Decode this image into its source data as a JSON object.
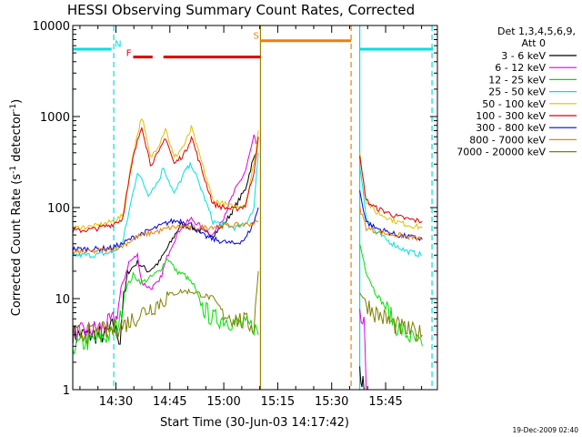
{
  "chart_data": {
    "type": "line",
    "title": "HESSI Observing Summary Count Rates, Corrected",
    "xlabel": "Start Time (30-Jun-03 14:17:42)",
    "ylabel_prefix": "Corrected Count Rate (s",
    "ylabel_sup1": "-1",
    "ylabel_mid": " detector",
    "ylabel_sup2": "-1",
    "ylabel_suffix": ")",
    "yscale": "log",
    "ylim": [
      1,
      10000
    ],
    "xlim_minutes": [
      14.3,
      15.99
    ],
    "x_ticks": [
      {
        "label": "14:30",
        "h": 14.5
      },
      {
        "label": "14:45",
        "h": 14.75
      },
      {
        "label": "15:00",
        "h": 15.0
      },
      {
        "label": "15:15",
        "h": 15.25
      },
      {
        "label": "15:30",
        "h": 15.5
      },
      {
        "label": "15:45",
        "h": 15.75
      }
    ],
    "y_ticks": [
      {
        "label": "1",
        "v": 1
      },
      {
        "label": "10",
        "v": 10
      },
      {
        "label": "100",
        "v": 100
      },
      {
        "label": "1000",
        "v": 1000
      },
      {
        "label": "10000",
        "v": 10000
      }
    ],
    "legend_title_1": "Det 1,3,4,5,6,9,",
    "legend_title_2": "Att 0",
    "legend_placement": "right",
    "series": [
      {
        "name": "3 - 6 keV",
        "color": "#000000",
        "segments": [
          [
            [
              14.3,
              4
            ],
            [
              14.45,
              4
            ],
            [
              14.49,
              5
            ],
            [
              14.52,
              3.5
            ],
            [
              14.53,
              8
            ],
            [
              14.56,
              20
            ],
            [
              14.6,
              25
            ],
            [
              14.65,
              20
            ],
            [
              14.7,
              25
            ],
            [
              14.75,
              40
            ],
            [
              14.8,
              65
            ],
            [
              14.85,
              60
            ],
            [
              14.9,
              55
            ],
            [
              14.95,
              50
            ],
            [
              15.0,
              65
            ],
            [
              15.05,
              100
            ],
            [
              15.1,
              160
            ],
            [
              15.13,
              300
            ],
            [
              15.15,
              400
            ]
          ],
          [
            [
              15.63,
              1.8
            ],
            [
              15.64,
              1.3
            ],
            [
              15.65,
              1
            ]
          ]
        ]
      },
      {
        "name": "6 - 12 keV",
        "color": "#e000e0",
        "segments": [
          [
            [
              14.3,
              4
            ],
            [
              14.45,
              5
            ],
            [
              14.5,
              6
            ],
            [
              14.53,
              14
            ],
            [
              14.56,
              25
            ],
            [
              14.6,
              30
            ],
            [
              14.62,
              15
            ],
            [
              14.66,
              13
            ],
            [
              14.7,
              15
            ],
            [
              14.75,
              35
            ],
            [
              14.8,
              60
            ],
            [
              14.85,
              75
            ],
            [
              14.9,
              60
            ],
            [
              14.95,
              50
            ],
            [
              15.0,
              80
            ],
            [
              15.05,
              150
            ],
            [
              15.1,
              250
            ],
            [
              15.14,
              600
            ],
            [
              15.15,
              500
            ]
          ],
          [
            [
              15.63,
              6
            ],
            [
              15.65,
              5
            ],
            [
              15.66,
              1
            ]
          ]
        ]
      },
      {
        "name": "12 - 25 keV",
        "color": "#00e000",
        "segments": [
          [
            [
              14.3,
              3
            ],
            [
              14.4,
              3.5
            ],
            [
              14.48,
              4
            ],
            [
              14.52,
              6
            ],
            [
              14.54,
              12
            ],
            [
              14.58,
              18
            ],
            [
              14.62,
              15
            ],
            [
              14.66,
              17
            ],
            [
              14.7,
              20
            ],
            [
              14.74,
              28
            ],
            [
              14.78,
              20
            ],
            [
              14.82,
              18
            ],
            [
              14.86,
              14
            ],
            [
              14.9,
              8
            ],
            [
              14.95,
              6
            ],
            [
              15.0,
              6
            ],
            [
              15.05,
              5.5
            ],
            [
              15.1,
              5
            ],
            [
              15.14,
              5
            ],
            [
              15.16,
              4
            ]
          ],
          [
            [
              15.63,
              40
            ],
            [
              15.66,
              20
            ],
            [
              15.7,
              12
            ],
            [
              15.75,
              8
            ],
            [
              15.8,
              5
            ],
            [
              15.85,
              4
            ],
            [
              15.92,
              3
            ]
          ]
        ]
      },
      {
        "name": "25 - 50 keV",
        "color": "#00e0e0",
        "segments": [
          [
            [
              14.3,
              30
            ],
            [
              14.4,
              30
            ],
            [
              14.48,
              32
            ],
            [
              14.53,
              40
            ],
            [
              14.6,
              250
            ],
            [
              14.65,
              140
            ],
            [
              14.7,
              200
            ],
            [
              14.72,
              280
            ],
            [
              14.77,
              140
            ],
            [
              14.82,
              250
            ],
            [
              14.85,
              300
            ],
            [
              14.9,
              150
            ],
            [
              14.95,
              70
            ],
            [
              15.0,
              65
            ],
            [
              15.05,
              60
            ],
            [
              15.1,
              65
            ],
            [
              15.14,
              100
            ],
            [
              15.16,
              400
            ]
          ],
          [
            [
              15.63,
              300
            ],
            [
              15.66,
              80
            ],
            [
              15.7,
              55
            ],
            [
              15.75,
              45
            ],
            [
              15.8,
              38
            ],
            [
              15.85,
              33
            ],
            [
              15.92,
              30
            ]
          ]
        ]
      },
      {
        "name": "50 - 100 keV",
        "color": "#e0c000",
        "segments": [
          [
            [
              14.3,
              60
            ],
            [
              14.4,
              62
            ],
            [
              14.48,
              70
            ],
            [
              14.53,
              80
            ],
            [
              14.58,
              400
            ],
            [
              14.62,
              1000
            ],
            [
              14.66,
              350
            ],
            [
              14.7,
              500
            ],
            [
              14.73,
              750
            ],
            [
              14.77,
              350
            ],
            [
              14.82,
              500
            ],
            [
              14.85,
              750
            ],
            [
              14.9,
              300
            ],
            [
              14.95,
              120
            ],
            [
              15.0,
              110
            ],
            [
              15.05,
              100
            ],
            [
              15.1,
              110
            ],
            [
              15.14,
              300
            ],
            [
              15.16,
              700
            ]
          ],
          [
            [
              15.63,
              400
            ],
            [
              15.66,
              120
            ],
            [
              15.7,
              90
            ],
            [
              15.75,
              80
            ],
            [
              15.8,
              70
            ],
            [
              15.85,
              65
            ],
            [
              15.92,
              60
            ]
          ]
        ]
      },
      {
        "name": "100 - 300 keV",
        "color": "#e00000",
        "segments": [
          [
            [
              14.3,
              55
            ],
            [
              14.4,
              58
            ],
            [
              14.48,
              65
            ],
            [
              14.53,
              75
            ],
            [
              14.58,
              350
            ],
            [
              14.62,
              800
            ],
            [
              14.66,
              300
            ],
            [
              14.7,
              400
            ],
            [
              14.73,
              600
            ],
            [
              14.77,
              300
            ],
            [
              14.82,
              400
            ],
            [
              14.85,
              600
            ],
            [
              14.9,
              250
            ],
            [
              14.95,
              110
            ],
            [
              15.0,
              100
            ],
            [
              15.05,
              95
            ],
            [
              15.1,
              105
            ],
            [
              15.14,
              250
            ],
            [
              15.16,
              600
            ]
          ],
          [
            [
              15.63,
              350
            ],
            [
              15.66,
              120
            ],
            [
              15.7,
              100
            ],
            [
              15.75,
              90
            ],
            [
              15.8,
              80
            ],
            [
              15.85,
              75
            ],
            [
              15.92,
              70
            ]
          ]
        ]
      },
      {
        "name": "300 - 800 keV",
        "color": "#0000e0",
        "segments": [
          [
            [
              14.3,
              35
            ],
            [
              14.4,
              35
            ],
            [
              14.48,
              36
            ],
            [
              14.53,
              40
            ],
            [
              14.6,
              50
            ],
            [
              14.65,
              55
            ],
            [
              14.7,
              62
            ],
            [
              14.75,
              70
            ],
            [
              14.8,
              72
            ],
            [
              14.85,
              65
            ],
            [
              14.9,
              50
            ],
            [
              14.95,
              45
            ],
            [
              15.0,
              42
            ],
            [
              15.05,
              40
            ],
            [
              15.1,
              45
            ],
            [
              15.14,
              70
            ],
            [
              15.16,
              100
            ]
          ],
          [
            [
              15.63,
              150
            ],
            [
              15.66,
              70
            ],
            [
              15.7,
              60
            ],
            [
              15.75,
              55
            ],
            [
              15.8,
              50
            ],
            [
              15.85,
              48
            ],
            [
              15.92,
              45
            ]
          ]
        ]
      },
      {
        "name": "800 - 7000 keV",
        "color": "#f08000",
        "segments": [
          [
            [
              14.3,
              32
            ],
            [
              14.4,
              33
            ],
            [
              14.48,
              35
            ],
            [
              14.53,
              38
            ],
            [
              14.6,
              48
            ],
            [
              14.65,
              52
            ],
            [
              14.7,
              55
            ],
            [
              14.75,
              60
            ],
            [
              14.8,
              62
            ],
            [
              14.85,
              60
            ],
            [
              14.9,
              60
            ],
            [
              14.95,
              62
            ],
            [
              15.0,
              63
            ],
            [
              15.05,
              64
            ],
            [
              15.1,
              65
            ],
            [
              15.14,
              68
            ],
            [
              15.16,
              70
            ]
          ],
          [
            [
              15.63,
              100
            ],
            [
              15.66,
              60
            ],
            [
              15.7,
              55
            ],
            [
              15.75,
              52
            ],
            [
              15.8,
              50
            ],
            [
              15.85,
              48
            ],
            [
              15.92,
              45
            ]
          ]
        ]
      },
      {
        "name": "7000 - 20000 keV",
        "color": "#808000",
        "segments": [
          [
            [
              14.3,
              4
            ],
            [
              14.4,
              4.2
            ],
            [
              14.48,
              4.5
            ],
            [
              14.53,
              5
            ],
            [
              14.58,
              6
            ],
            [
              14.62,
              7
            ],
            [
              14.66,
              8
            ],
            [
              14.7,
              9
            ],
            [
              14.75,
              11
            ],
            [
              14.8,
              12
            ],
            [
              14.85,
              12
            ],
            [
              14.9,
              11
            ],
            [
              14.95,
              10
            ],
            [
              15.0,
              7
            ],
            [
              15.05,
              6
            ],
            [
              15.1,
              5.5
            ],
            [
              15.14,
              5
            ],
            [
              15.16,
              20
            ]
          ],
          [
            [
              15.63,
              12
            ],
            [
              15.66,
              9
            ],
            [
              15.7,
              7
            ],
            [
              15.75,
              6
            ],
            [
              15.8,
              5
            ],
            [
              15.85,
              4.5
            ],
            [
              15.92,
              4
            ]
          ]
        ]
      }
    ],
    "flags": [
      {
        "color": "#00e0e0",
        "value": 5500,
        "from": 14.3,
        "to": 14.48
      },
      {
        "color": "#00e0e0",
        "value": 5500,
        "from": 15.63,
        "to": 15.97
      },
      {
        "color": "#e00000",
        "value": 4500,
        "from": 14.58,
        "to": 14.67
      },
      {
        "color": "#e00000",
        "value": 4500,
        "from": 14.72,
        "to": 15.17
      },
      {
        "color": "#f08000",
        "value": 6800,
        "from": 15.17,
        "to": 15.59
      }
    ],
    "flag_labels": [
      {
        "text": "N",
        "color": "#00e0e0",
        "h": 14.51,
        "value": 5800
      },
      {
        "text": "F",
        "color": "#e00000",
        "h": 14.56,
        "value": 4600
      },
      {
        "text": "S",
        "color": "#f08000",
        "h": 15.15,
        "value": 7200
      }
    ],
    "vlines": [
      {
        "color": "#00e0e0",
        "h": 14.3,
        "style": "solid"
      },
      {
        "color": "#00e0e0",
        "h": 14.49,
        "style": "dashed"
      },
      {
        "color": "#a08000",
        "h": 15.17,
        "style": "solid"
      },
      {
        "color": "#f08000",
        "h": 15.59,
        "style": "dashed"
      },
      {
        "color": "#00e0e0",
        "h": 15.63,
        "style": "solid"
      },
      {
        "color": "#00e0e0",
        "h": 15.965,
        "style": "dashed"
      }
    ],
    "datestamp": "19-Dec-2009 02:40"
  }
}
